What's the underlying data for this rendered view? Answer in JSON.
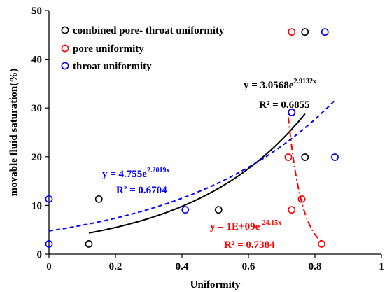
{
  "chart_data": {
    "type": "scatter",
    "xlabel": "Uniformity",
    "ylabel": "movable fluid saturation(%)",
    "xlim": [
      0,
      1
    ],
    "ylim": [
      0,
      50
    ],
    "xticks": [
      "0",
      "0.2",
      "0.4",
      "0.6",
      "0.8",
      "1"
    ],
    "yticks": [
      "0",
      "10",
      "20",
      "30",
      "40",
      "50"
    ],
    "grid": false,
    "legend_position": "top-left",
    "series": [
      {
        "name": "combined pore- throat uniformity",
        "color": "#000000",
        "points": [
          {
            "x": 0.12,
            "y": 2.1
          },
          {
            "x": 0.15,
            "y": 11.3
          },
          {
            "x": 0.51,
            "y": 9.1
          },
          {
            "x": 0.73,
            "y": 29.1
          },
          {
            "x": 0.77,
            "y": 19.9
          },
          {
            "x": 0.77,
            "y": 45.6
          }
        ],
        "fit": {
          "type": "exponential",
          "a": 3.0568,
          "b": 2.9132,
          "x_range": [
            0.12,
            0.77
          ],
          "style": "solid",
          "equation_prefix": "y = 3.0568e",
          "equation_exp": "2.9132x",
          "r2": "R² = 0.6855"
        }
      },
      {
        "name": "pore uniformity",
        "color": "#ff0000",
        "points": [
          {
            "x": 0.72,
            "y": 19.9
          },
          {
            "x": 0.73,
            "y": 29.1
          },
          {
            "x": 0.73,
            "y": 9.1
          },
          {
            "x": 0.73,
            "y": 45.6
          },
          {
            "x": 0.76,
            "y": 11.3
          },
          {
            "x": 0.82,
            "y": 2.1
          }
        ],
        "fit": {
          "type": "exponential",
          "a": 1000000000,
          "b": -24.15,
          "x_range": [
            0.72,
            0.82
          ],
          "style": "dashdot",
          "equation_prefix": "y = 1E+09e",
          "equation_exp": "-24.15x",
          "r2": "R² = 0.7384"
        }
      },
      {
        "name": "throat uniformity",
        "color": "#0000ff",
        "points": [
          {
            "x": 0.0,
            "y": 2.1
          },
          {
            "x": 0.0,
            "y": 11.3
          },
          {
            "x": 0.41,
            "y": 9.1
          },
          {
            "x": 0.73,
            "y": 29.1
          },
          {
            "x": 0.83,
            "y": 45.6
          },
          {
            "x": 0.86,
            "y": 19.9
          }
        ],
        "fit": {
          "type": "exponential",
          "a": 4.755,
          "b": 2.2019,
          "x_range": [
            0.0,
            0.86
          ],
          "style": "dashed",
          "equation_prefix": "y = 4.755e",
          "equation_exp": "2.2019x",
          "r2": "R² = 0.6704"
        }
      }
    ]
  }
}
